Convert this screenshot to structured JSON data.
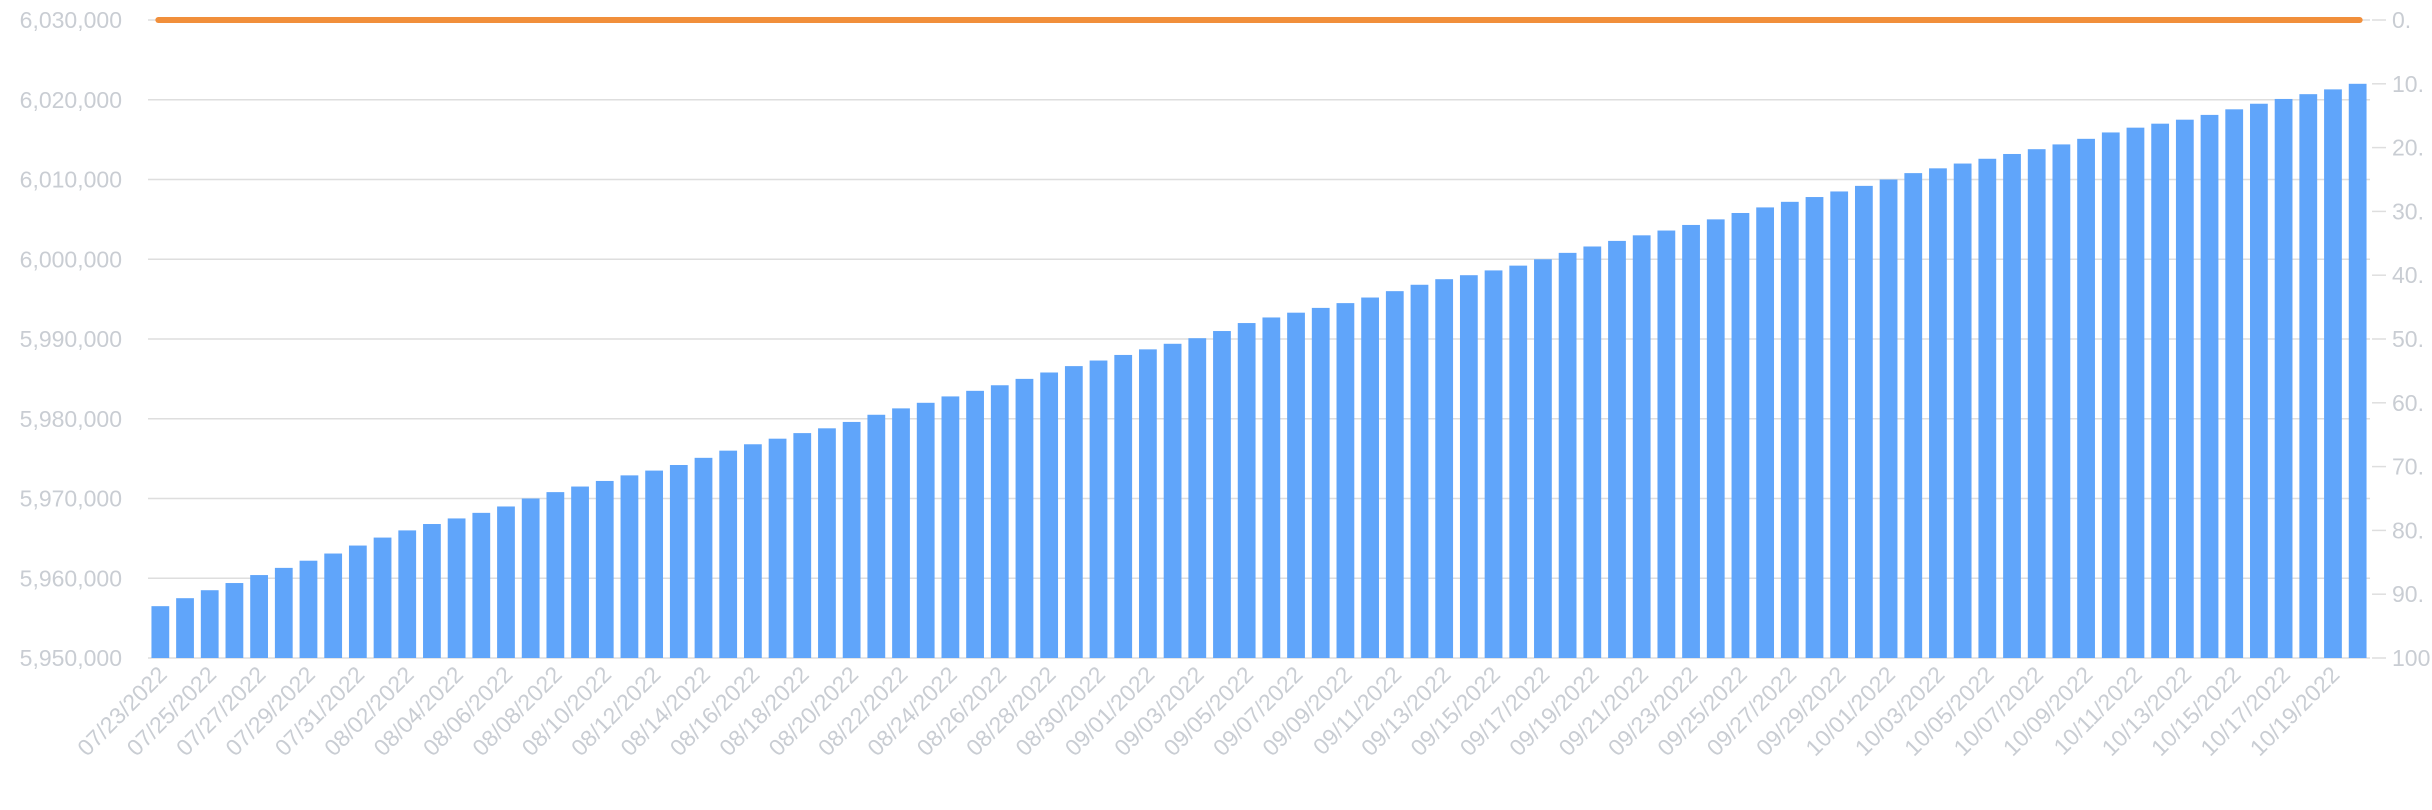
{
  "chart_data": {
    "type": "bar",
    "title": "",
    "xlabel": "",
    "ylabel": "",
    "grid": true,
    "legend": "none",
    "y_left_ticks": [
      "5,950,000",
      "5,960,000",
      "5,970,000",
      "5,980,000",
      "5,990,000",
      "6,000,000",
      "6,010,000",
      "6,020,000",
      "6,030,000"
    ],
    "y_right_ticks": [
      "100.",
      "90.",
      "80.",
      "70.",
      "60.",
      "50.",
      "40.",
      "30.",
      "20.",
      "10.",
      "0."
    ],
    "ylim": [
      5950000,
      6030000
    ],
    "ylim_right": [
      100,
      0
    ],
    "x_tick_labels": [
      "07/23/2022",
      "07/25/2022",
      "07/27/2022",
      "07/29/2022",
      "07/31/2022",
      "08/02/2022",
      "08/04/2022",
      "08/06/2022",
      "08/08/2022",
      "08/10/2022",
      "08/12/2022",
      "08/14/2022",
      "08/16/2022",
      "08/18/2022",
      "08/20/2022",
      "08/22/2022",
      "08/24/2022",
      "08/26/2022",
      "08/28/2022",
      "08/30/2022",
      "09/01/2022",
      "09/03/2022",
      "09/05/2022",
      "09/07/2022",
      "09/09/2022",
      "09/11/2022",
      "09/13/2022",
      "09/15/2022",
      "09/17/2022",
      "09/19/2022",
      "09/21/2022",
      "09/23/2022",
      "09/25/2022",
      "09/27/2022",
      "09/29/2022",
      "10/01/2022",
      "10/03/2022",
      "10/05/2022",
      "10/07/2022",
      "10/09/2022",
      "10/11/2022",
      "10/13/2022",
      "10/15/2022",
      "10/17/2022",
      "10/19/2022"
    ],
    "series": [
      {
        "type": "bar",
        "axis": "left",
        "color": "#60a5fa",
        "x_start": "07/23/2022",
        "x_end": "10/20/2022",
        "values": [
          5956500,
          5957500,
          5958500,
          5959400,
          5960400,
          5961300,
          5962200,
          5963100,
          5964100,
          5965100,
          5966000,
          5966800,
          5967500,
          5968200,
          5969000,
          5970000,
          5970800,
          5971500,
          5972200,
          5972900,
          5973500,
          5974200,
          5975100,
          5976000,
          5976800,
          5977500,
          5978200,
          5978800,
          5979600,
          5980500,
          5981300,
          5982000,
          5982800,
          5983500,
          5984200,
          5985000,
          5985800,
          5986600,
          5987300,
          5988000,
          5988700,
          5989400,
          5990100,
          5991000,
          5992000,
          5992700,
          5993300,
          5993900,
          5994500,
          5995200,
          5996000,
          5996800,
          5997500,
          5998000,
          5998600,
          5999200,
          6000000,
          6000800,
          6001600,
          6002300,
          6003000,
          6003600,
          6004300,
          6005000,
          6005800,
          6006500,
          6007200,
          6007800,
          6008500,
          6009200,
          6010000,
          6010800,
          6011400,
          6012000,
          6012600,
          6013200,
          6013800,
          6014400,
          6015100,
          6015900,
          6016500,
          6017000,
          6017500,
          6018100,
          6018800,
          6019500,
          6020100,
          6020700,
          6021300,
          6022000
        ]
      },
      {
        "type": "line",
        "axis": "right",
        "color": "#f18f3b",
        "values": "constant",
        "value": 0
      }
    ]
  }
}
